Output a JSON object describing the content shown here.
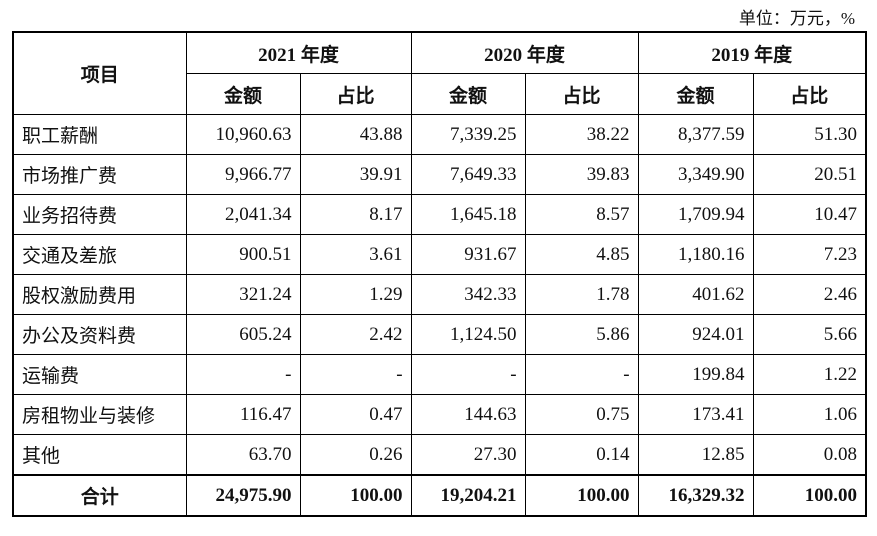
{
  "unit": "单位：万元，%",
  "table": {
    "header": {
      "item": "项目",
      "years": [
        "2021 年度",
        "2020 年度",
        "2019 年度"
      ],
      "sub": [
        "金额",
        "占比"
      ]
    },
    "rows": [
      [
        "职工薪酬",
        "10,960.63",
        "43.88",
        "7,339.25",
        "38.22",
        "8,377.59",
        "51.30"
      ],
      [
        "市场推广费",
        "9,966.77",
        "39.91",
        "7,649.33",
        "39.83",
        "3,349.90",
        "20.51"
      ],
      [
        "业务招待费",
        "2,041.34",
        "8.17",
        "1,645.18",
        "8.57",
        "1,709.94",
        "10.47"
      ],
      [
        "交通及差旅",
        "900.51",
        "3.61",
        "931.67",
        "4.85",
        "1,180.16",
        "7.23"
      ],
      [
        "股权激励费用",
        "321.24",
        "1.29",
        "342.33",
        "1.78",
        "401.62",
        "2.46"
      ],
      [
        "办公及资料费",
        "605.24",
        "2.42",
        "1,124.50",
        "5.86",
        "924.01",
        "5.66"
      ],
      [
        "运输费",
        "-",
        "-",
        "-",
        "-",
        "199.84",
        "1.22"
      ],
      [
        "房租物业与装修",
        "116.47",
        "0.47",
        "144.63",
        "0.75",
        "173.41",
        "1.06"
      ],
      [
        "其他",
        "63.70",
        "0.26",
        "27.30",
        "0.14",
        "12.85",
        "0.08"
      ]
    ],
    "total": [
      "合计",
      "24,975.90",
      "100.00",
      "19,204.21",
      "100.00",
      "16,329.32",
      "100.00"
    ]
  }
}
